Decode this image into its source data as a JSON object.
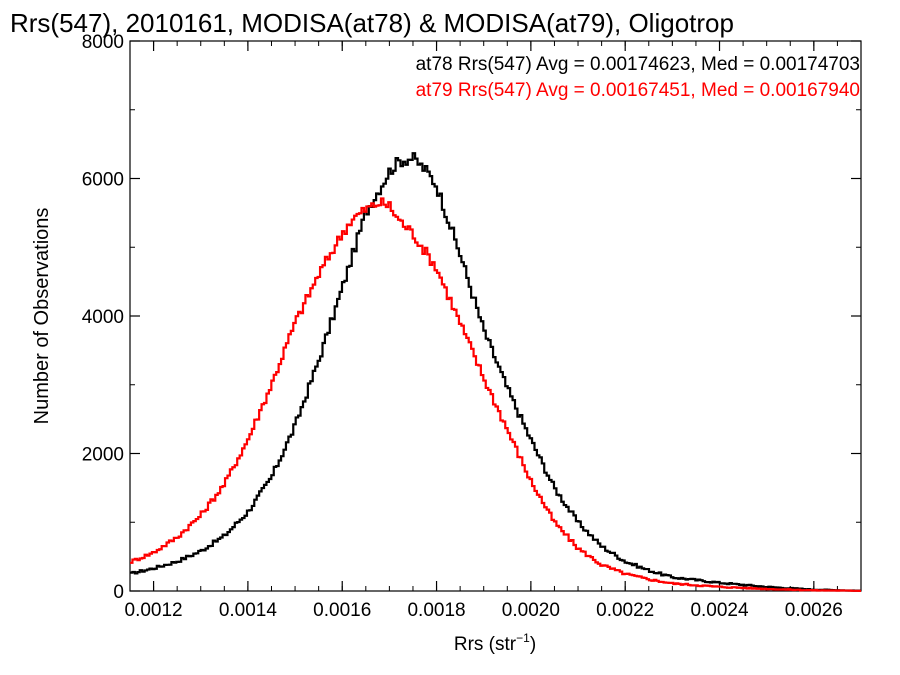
{
  "chart_data": {
    "type": "line",
    "title": "Rrs(547), 2010161, MODISA(at78) & MODISA(at79), Oligotrop",
    "xlabel": "Rrs (str",
    "xlabel_sup": "−1",
    "xlabel_close": ")",
    "ylabel": "Number of Observations",
    "xlim": [
      0.00115,
      0.0027
    ],
    "ylim": [
      0,
      8000
    ],
    "xticks": [
      0.0012,
      0.0014,
      0.0016,
      0.0018,
      0.002,
      0.0022,
      0.0024,
      0.0026
    ],
    "xtick_labels": [
      "0.0012",
      "0.0014",
      "0.0016",
      "0.0018",
      "0.0020",
      "0.0022",
      "0.0024",
      "0.0026"
    ],
    "yticks": [
      0,
      2000,
      4000,
      6000,
      8000
    ],
    "ytick_labels": [
      "0",
      "2000",
      "4000",
      "6000",
      "8000"
    ],
    "grid": false,
    "legend_position": "top-right",
    "series": [
      {
        "name": "at78",
        "color": "#000000",
        "annotation": "at78 Rrs(547) Avg = 0.00174623, Med = 0.00174703",
        "x": [
          0.00115,
          0.0012,
          0.00125,
          0.0013,
          0.00135,
          0.0014,
          0.00145,
          0.0015,
          0.00155,
          0.0016,
          0.00165,
          0.0017,
          0.00172,
          0.00175,
          0.00178,
          0.0018,
          0.00185,
          0.0019,
          0.00195,
          0.002,
          0.00205,
          0.0021,
          0.00215,
          0.0022,
          0.00225,
          0.0023,
          0.0024,
          0.0025,
          0.0026,
          0.0027
        ],
        "y": [
          250,
          330,
          430,
          580,
          800,
          1150,
          1650,
          2400,
          3350,
          4400,
          5500,
          6100,
          6250,
          6300,
          6100,
          5900,
          4900,
          3800,
          2950,
          2200,
          1500,
          1000,
          650,
          430,
          300,
          200,
          120,
          60,
          20,
          5
        ]
      },
      {
        "name": "at79",
        "color": "#ff0000",
        "annotation": "at79 Rrs(547) Avg = 0.00167451, Med = 0.00167940",
        "x": [
          0.00115,
          0.0012,
          0.00125,
          0.0013,
          0.00135,
          0.0014,
          0.00145,
          0.0015,
          0.00155,
          0.0016,
          0.00162,
          0.00165,
          0.00168,
          0.0017,
          0.00172,
          0.00175,
          0.0018,
          0.00185,
          0.0019,
          0.00195,
          0.002,
          0.00205,
          0.0021,
          0.00215,
          0.0022,
          0.00225,
          0.0023,
          0.0024,
          0.0025,
          0.0026,
          0.0027
        ],
        "y": [
          420,
          560,
          780,
          1100,
          1550,
          2200,
          3000,
          3900,
          4600,
          5200,
          5400,
          5550,
          5650,
          5600,
          5400,
          5200,
          4700,
          3900,
          3100,
          2350,
          1600,
          1000,
          620,
          380,
          250,
          170,
          110,
          60,
          30,
          10,
          3
        ]
      }
    ]
  }
}
